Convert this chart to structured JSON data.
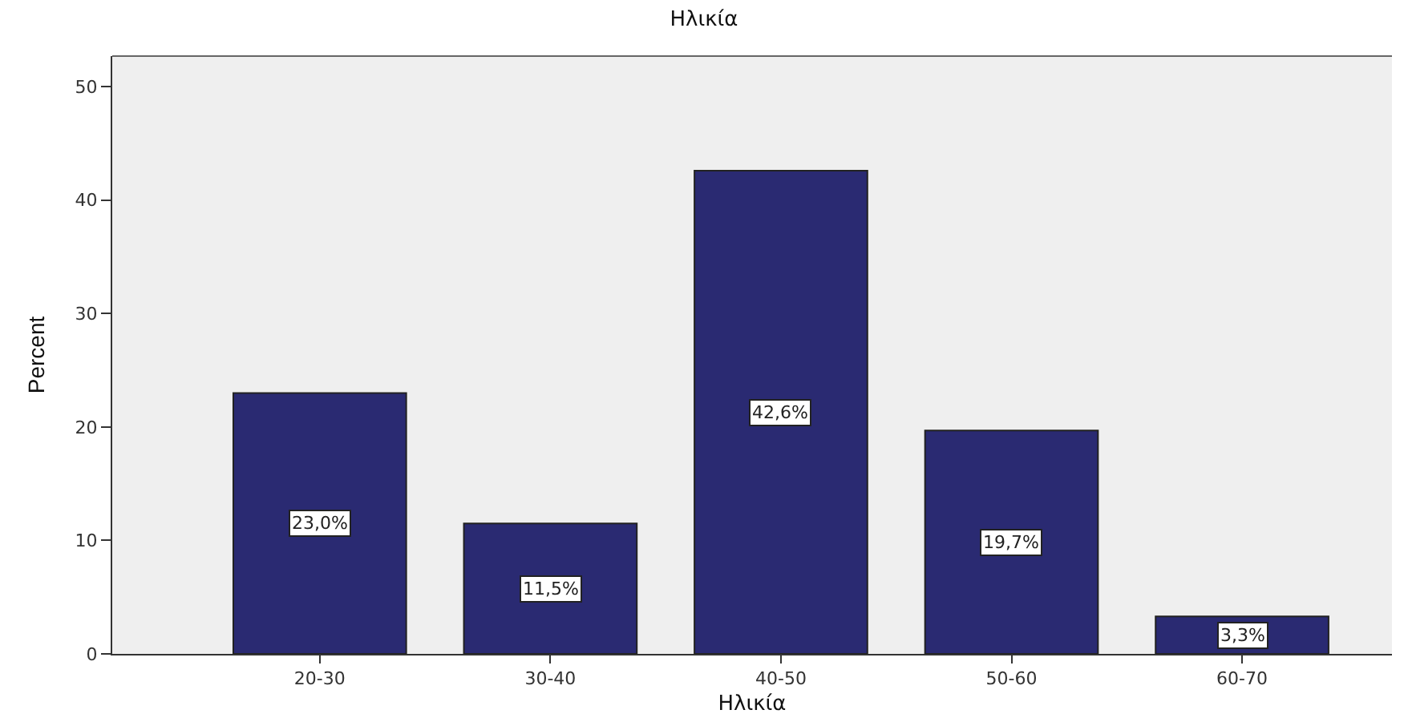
{
  "chart_data": {
    "type": "bar",
    "title": "Ηλικία",
    "xlabel": "Ηλικία",
    "ylabel": "Percent",
    "categories": [
      "20-30",
      "30-40",
      "40-50",
      "50-60",
      "60-70"
    ],
    "values": [
      23.0,
      11.5,
      42.6,
      19.7,
      3.3
    ],
    "value_labels": [
      "23,0%",
      "11,5%",
      "42,6%",
      "19,7%",
      "3,3%"
    ],
    "color": "#2a2a72",
    "ylim": [
      0,
      52.7
    ],
    "yticks": [
      0,
      10,
      20,
      30,
      40,
      50
    ],
    "grid": false
  }
}
